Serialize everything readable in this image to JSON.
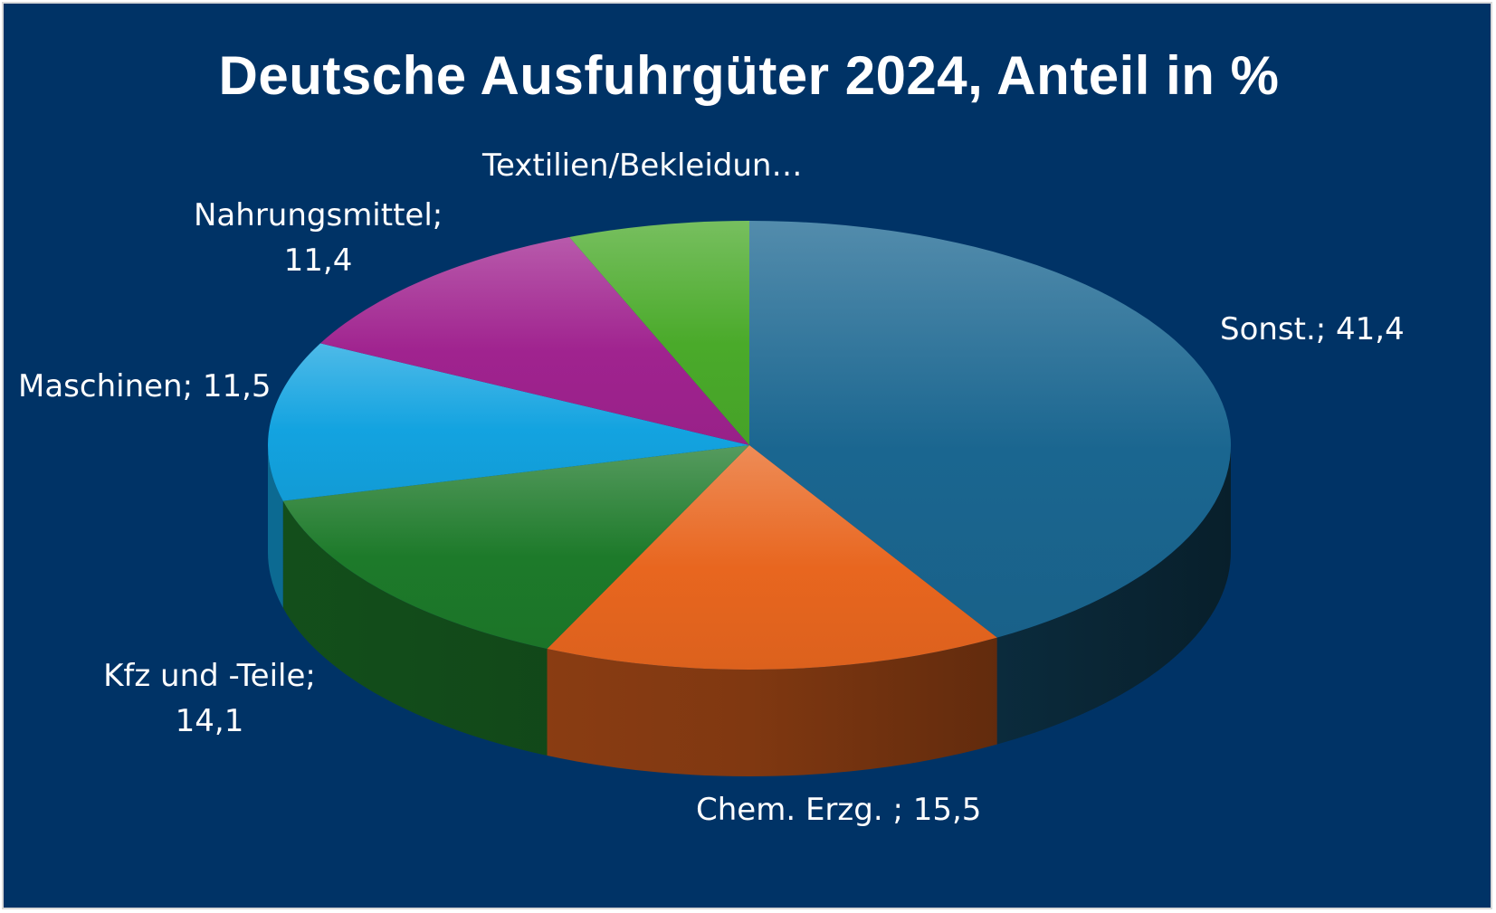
{
  "chart_data": {
    "type": "pie",
    "title": "Deutsche Ausfuhrgüter 2024, Anteil in %",
    "slices": [
      {
        "label": "Sonst.",
        "value": 41.4,
        "label_text": "Sonst.; 41,4",
        "color": "#1a6690"
      },
      {
        "label": "Chem. Erzg. ",
        "value": 15.5,
        "label_text": "Chem. Erzg. ; 15,5",
        "color": "#e8661f"
      },
      {
        "label": "Kfz und -Teile",
        "value": 14.1,
        "label_text": "Kfz und -Teile;\n14,1",
        "color": "#1d7a2a"
      },
      {
        "label": "Maschinen",
        "value": 11.5,
        "label_text": "Maschinen; 11,5",
        "color": "#13a3e0"
      },
      {
        "label": "Nahrungsmittel",
        "value": 11.4,
        "label_text": "Nahrungsmittel;\n11,4",
        "color": "#a0238f"
      },
      {
        "label": "Textilien/Bekleidung",
        "value": 6.1,
        "label_text": "Textilien/Bekleidun…",
        "color": "#4aaa2a"
      }
    ],
    "legend": "none",
    "background": "#003366",
    "label_color": "#ffffff"
  }
}
